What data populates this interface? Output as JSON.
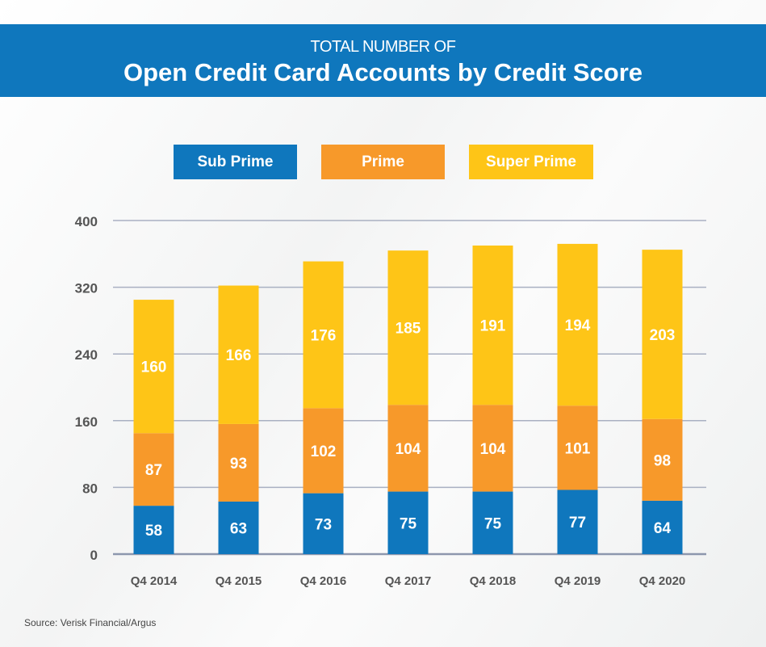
{
  "header": {
    "subtitle": "TOTAL NUMBER OF",
    "title": "Open Credit Card Accounts by Credit Score"
  },
  "source": "Source: Verisk Financial/Argus",
  "chart_data": {
    "type": "bar",
    "stacked": true,
    "title": "Open Credit Card Accounts by Credit Score",
    "subtitle": "TOTAL NUMBER OF",
    "categories": [
      "Q4 2014",
      "Q4 2015",
      "Q4 2016",
      "Q4 2017",
      "Q4 2018",
      "Q4 2019",
      "Q4 2020"
    ],
    "series": [
      {
        "name": "Sub Prime",
        "color": "#0f77bd",
        "values": [
          58,
          63,
          73,
          75,
          75,
          77,
          64
        ]
      },
      {
        "name": "Prime",
        "color": "#f7992a",
        "values": [
          87,
          93,
          102,
          104,
          104,
          101,
          98
        ]
      },
      {
        "name": "Super Prime",
        "color": "#fec517",
        "values": [
          160,
          166,
          176,
          185,
          191,
          194,
          203
        ]
      }
    ],
    "yticks": [
      0,
      80,
      160,
      240,
      320,
      400
    ],
    "ylim": [
      0,
      400
    ],
    "grid": true,
    "legend": "top"
  }
}
